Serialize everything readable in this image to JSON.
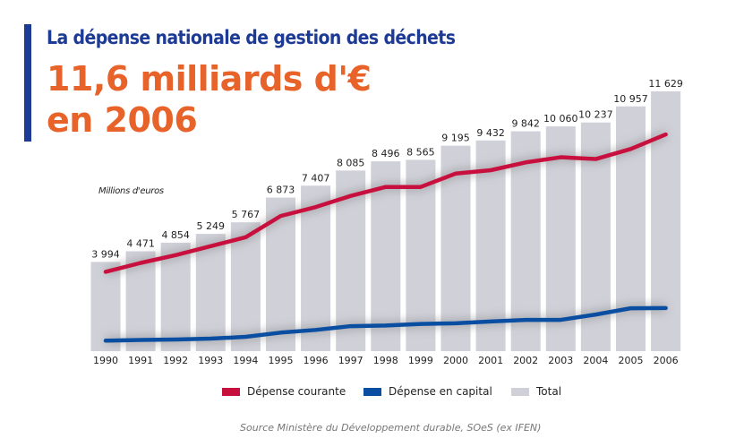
{
  "title": "La dépense nationale de gestion des déchets",
  "headline_line1": "11,6 milliards d'€",
  "headline_line2": "en 2006",
  "source": "Source Ministère du Développement durable, SOeS (ex IFEN)",
  "colors": {
    "title": "#1d3a94",
    "headline": "#e8632a",
    "courante": "#c8103e",
    "capital": "#0a4ea2",
    "total": "#cfd0d8"
  },
  "chart_data": {
    "type": "bar",
    "ylabel": "Millions d'euros",
    "ylim": [
      0,
      11629
    ],
    "grid": false,
    "legend_position": "bottom",
    "categories": [
      "1990",
      "1991",
      "1992",
      "1993",
      "1994",
      "1995",
      "1996",
      "1997",
      "1998",
      "1999",
      "2000",
      "2001",
      "2002",
      "2003",
      "2004",
      "2005",
      "2006"
    ],
    "series": [
      {
        "name": "Total",
        "type": "bar",
        "values": [
          3994,
          4471,
          4854,
          5249,
          5767,
          6873,
          7407,
          8085,
          8496,
          8565,
          9195,
          9432,
          9842,
          10060,
          10237,
          10957,
          11629
        ],
        "labels": [
          "3 994",
          "4 471",
          "4 854",
          "5 249",
          "5 767",
          "6 873",
          "7 407",
          "8 085",
          "8 496",
          "8 565",
          "9 195",
          "9 432",
          "9 842",
          "10 060",
          "10 237",
          "10 957",
          "11 629"
        ]
      },
      {
        "name": "Dépense courante",
        "type": "line",
        "values": [
          3550,
          3950,
          4300,
          4700,
          5100,
          6050,
          6450,
          6950,
          7350,
          7350,
          7950,
          8100,
          8450,
          8680,
          8600,
          9050,
          9700
        ]
      },
      {
        "name": "Dépense en capital",
        "type": "line",
        "values": [
          470,
          500,
          520,
          560,
          640,
          830,
          950,
          1120,
          1150,
          1220,
          1250,
          1330,
          1400,
          1400,
          1640,
          1920,
          1930
        ]
      }
    ],
    "legend": [
      "Dépense courante",
      "Dépense en capital",
      "Total"
    ]
  }
}
